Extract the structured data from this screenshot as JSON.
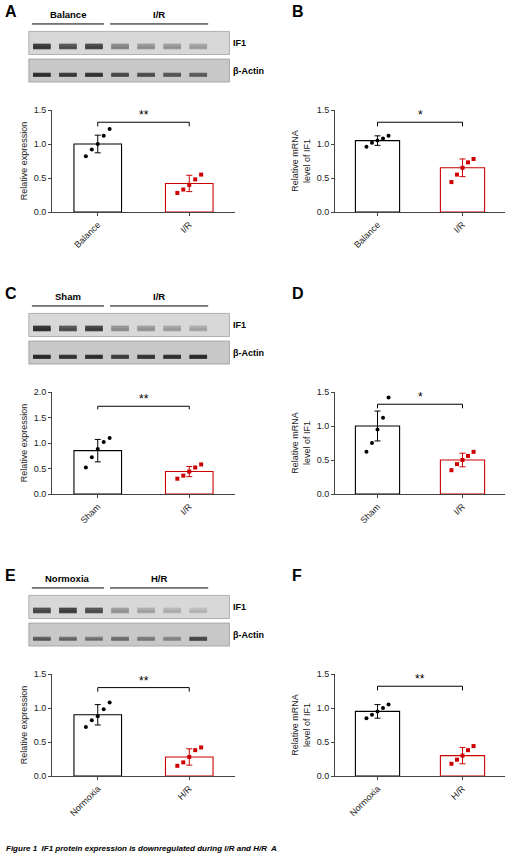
{
  "chart_data": [
    {
      "type": "blot",
      "title": "A",
      "categories": [
        "Balance",
        "I/R"
      ],
      "series": [
        {
          "name": "IF1",
          "values": [
            [
              0.75,
              0.65,
              0.7
            ],
            [
              0.45,
              0.4,
              0.38,
              0.35
            ]
          ]
        },
        {
          "name": "β-Actin",
          "values": [
            [
              0.8,
              0.75,
              0.78
            ],
            [
              0.7,
              0.68,
              0.65,
              0.62
            ]
          ]
        }
      ]
    },
    {
      "type": "bar",
      "categories": [
        "Balance",
        "I/R"
      ],
      "values": [
        1.0,
        0.42
      ],
      "errors": [
        0.13,
        0.12
      ],
      "colors": [
        "black",
        "#cc0000"
      ],
      "points": [
        [
          0.82,
          0.92,
          1.0,
          1.12,
          1.22
        ],
        [
          0.28,
          0.33,
          0.4,
          0.48,
          0.55
        ]
      ],
      "ylabel": "Relative expression",
      "ylim": [
        0,
        1.5
      ],
      "yticks": [
        {
          "value": 0,
          "label": "0.0"
        },
        0.5,
        {
          "value": 1,
          "label": "1.0"
        },
        1.5
      ],
      "annotations": [
        {
          "text": "**",
          "y": 1.32
        }
      ],
      "grid": false
    },
    {
      "type": "bar",
      "title": "B",
      "categories": [
        "Balance",
        "I/R"
      ],
      "values": [
        1.05,
        0.65
      ],
      "errors": [
        0.07,
        0.13
      ],
      "colors": [
        "black",
        "#cc0000"
      ],
      "points": [
        [
          0.96,
          1.02,
          1.05,
          1.08,
          1.12
        ],
        [
          0.44,
          0.55,
          0.65,
          0.73,
          0.78
        ]
      ],
      "ylabel": "Relative mRNA\nlevel of IF1",
      "ylim": [
        0,
        1.5
      ],
      "yticks": [
        {
          "value": 0,
          "label": "0.0"
        },
        0.5,
        {
          "value": 1,
          "label": "1.0"
        },
        1.5
      ],
      "annotations": [
        {
          "text": "*",
          "y": 1.32
        }
      ],
      "grid": false
    },
    {
      "type": "blot",
      "title": "C",
      "categories": [
        "Sham",
        "I/R"
      ],
      "series": [
        {
          "name": "IF1",
          "values": [
            [
              0.78,
              0.65,
              0.72
            ],
            [
              0.42,
              0.38,
              0.35,
              0.32
            ]
          ]
        },
        {
          "name": "β-Actin",
          "values": [
            [
              0.82,
              0.78,
              0.8
            ],
            [
              0.75,
              0.78,
              0.8,
              0.82
            ]
          ]
        }
      ]
    },
    {
      "type": "bar",
      "categories": [
        "Sham",
        "I/R"
      ],
      "values": [
        0.85,
        0.44
      ],
      "errors": [
        0.22,
        0.1
      ],
      "colors": [
        "black",
        "#cc0000"
      ],
      "points": [
        [
          0.52,
          0.72,
          0.88,
          1.02,
          1.1
        ],
        [
          0.3,
          0.36,
          0.44,
          0.52,
          0.58
        ]
      ],
      "ylabel": "Relative expression",
      "ylim": [
        0,
        2.0
      ],
      "yticks": [
        {
          "value": 0,
          "label": "0.0"
        },
        0.5,
        {
          "value": 1,
          "label": "1.0"
        },
        1.5,
        {
          "value": 2,
          "label": "2.0"
        }
      ],
      "annotations": [
        {
          "text": "**",
          "y": 1.72
        }
      ],
      "grid": false
    },
    {
      "type": "bar",
      "title": "D",
      "categories": [
        "Sham",
        "I/R"
      ],
      "values": [
        1.0,
        0.5
      ],
      "errors": [
        0.22,
        0.1
      ],
      "colors": [
        "black",
        "#cc0000"
      ],
      "points": [
        [
          0.62,
          0.75,
          0.95,
          1.12,
          1.42
        ],
        [
          0.35,
          0.44,
          0.5,
          0.56,
          0.62
        ]
      ],
      "ylabel": "Relative mRNA\nlevel of IF1",
      "ylim": [
        0,
        1.5
      ],
      "yticks": [
        {
          "value": 0,
          "label": "0.0"
        },
        0.5,
        {
          "value": 1,
          "label": "1.0"
        },
        1.5
      ],
      "annotations": [
        {
          "text": "*",
          "y": 1.32
        }
      ],
      "grid": false
    },
    {
      "type": "blot",
      "title": "E",
      "categories": [
        "Normoxia",
        "H/R"
      ],
      "series": [
        {
          "name": "IF1",
          "values": [
            [
              0.68,
              0.72,
              0.65
            ],
            [
              0.38,
              0.32,
              0.28,
              0.25
            ]
          ]
        },
        {
          "name": "β-Actin",
          "values": [
            [
              0.6,
              0.55,
              0.5
            ],
            [
              0.55,
              0.5,
              0.45,
              0.7
            ]
          ]
        }
      ]
    },
    {
      "type": "bar",
      "categories": [
        "Normoxia",
        "H/R"
      ],
      "values": [
        0.9,
        0.28
      ],
      "errors": [
        0.15,
        0.12
      ],
      "colors": [
        "black",
        "#cc0000"
      ],
      "points": [
        [
          0.72,
          0.82,
          0.88,
          0.98,
          1.08
        ],
        [
          0.15,
          0.2,
          0.28,
          0.38,
          0.42
        ]
      ],
      "ylabel": "Relative expression",
      "ylim": [
        0,
        1.5
      ],
      "yticks": [
        {
          "value": 0,
          "label": "0.0"
        },
        0.5,
        {
          "value": 1,
          "label": "1.0"
        },
        1.5
      ],
      "annotations": [
        {
          "text": "**",
          "y": 1.3
        }
      ],
      "grid": false
    },
    {
      "type": "bar",
      "title": "F",
      "categories": [
        "Normoxia",
        "H/R"
      ],
      "values": [
        0.95,
        0.3
      ],
      "errors": [
        0.1,
        0.12
      ],
      "colors": [
        "black",
        "#cc0000"
      ],
      "points": [
        [
          0.85,
          0.9,
          0.95,
          1.0,
          1.05
        ],
        [
          0.18,
          0.24,
          0.3,
          0.38,
          0.44
        ]
      ],
      "ylabel": "Relative mRNA\nlevel of IF1",
      "ylim": [
        0,
        1.5
      ],
      "yticks": [
        {
          "value": 0,
          "label": "0.0"
        },
        0.5,
        {
          "value": 1,
          "label": "1.0"
        },
        1.5
      ],
      "annotations": [
        {
          "text": "**",
          "y": 1.32
        }
      ],
      "grid": false
    }
  ],
  "caption": "Figure 1  IF1 protein expression is downregulated during I/R and H/R  A"
}
